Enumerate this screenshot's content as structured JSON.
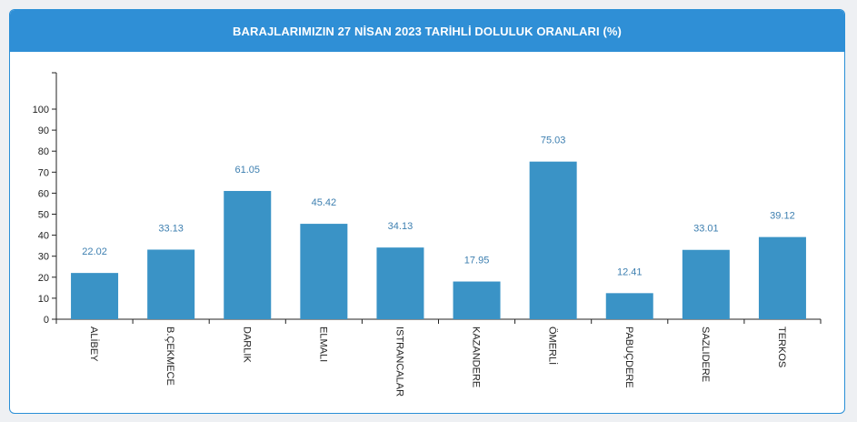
{
  "header": {
    "title": "BARAJLARIMIZIN 27 NİSAN 2023 TARİHLİ DOLULUK ORANLARI (%)"
  },
  "colors": {
    "header_bg": "#2f8fd6",
    "bar": "#3a93c6",
    "data_label": "#3d7fb0"
  },
  "chart_data": {
    "type": "bar",
    "title": "BARAJLARIMIZIN 27 NİSAN 2023 TARİHLİ DOLULUK ORANLARI (%)",
    "categories": [
      "ALİBEY",
      "B.ÇEKMECE",
      "DARLIK",
      "ELMALI",
      "ISTRANCALAR",
      "KAZANDERE",
      "ÖMERLİ",
      "PABUÇDERE",
      "SAZLIDERE",
      "TERKOS"
    ],
    "values": [
      22.02,
      33.13,
      61.05,
      45.42,
      34.13,
      17.95,
      75.03,
      12.41,
      33.01,
      39.12
    ],
    "value_labels": [
      "22.02",
      "33.13",
      "61.05",
      "45.42",
      "34.13",
      "17.95",
      "75.03",
      "12.41",
      "33.01",
      "39.12"
    ],
    "yticks": [
      "0",
      "10",
      "20",
      "30",
      "40",
      "50",
      "60",
      "70",
      "80",
      "90",
      "100"
    ],
    "ylim": [
      0,
      100
    ],
    "xlabel": "",
    "ylabel": "",
    "grid": false,
    "legend": "none"
  }
}
